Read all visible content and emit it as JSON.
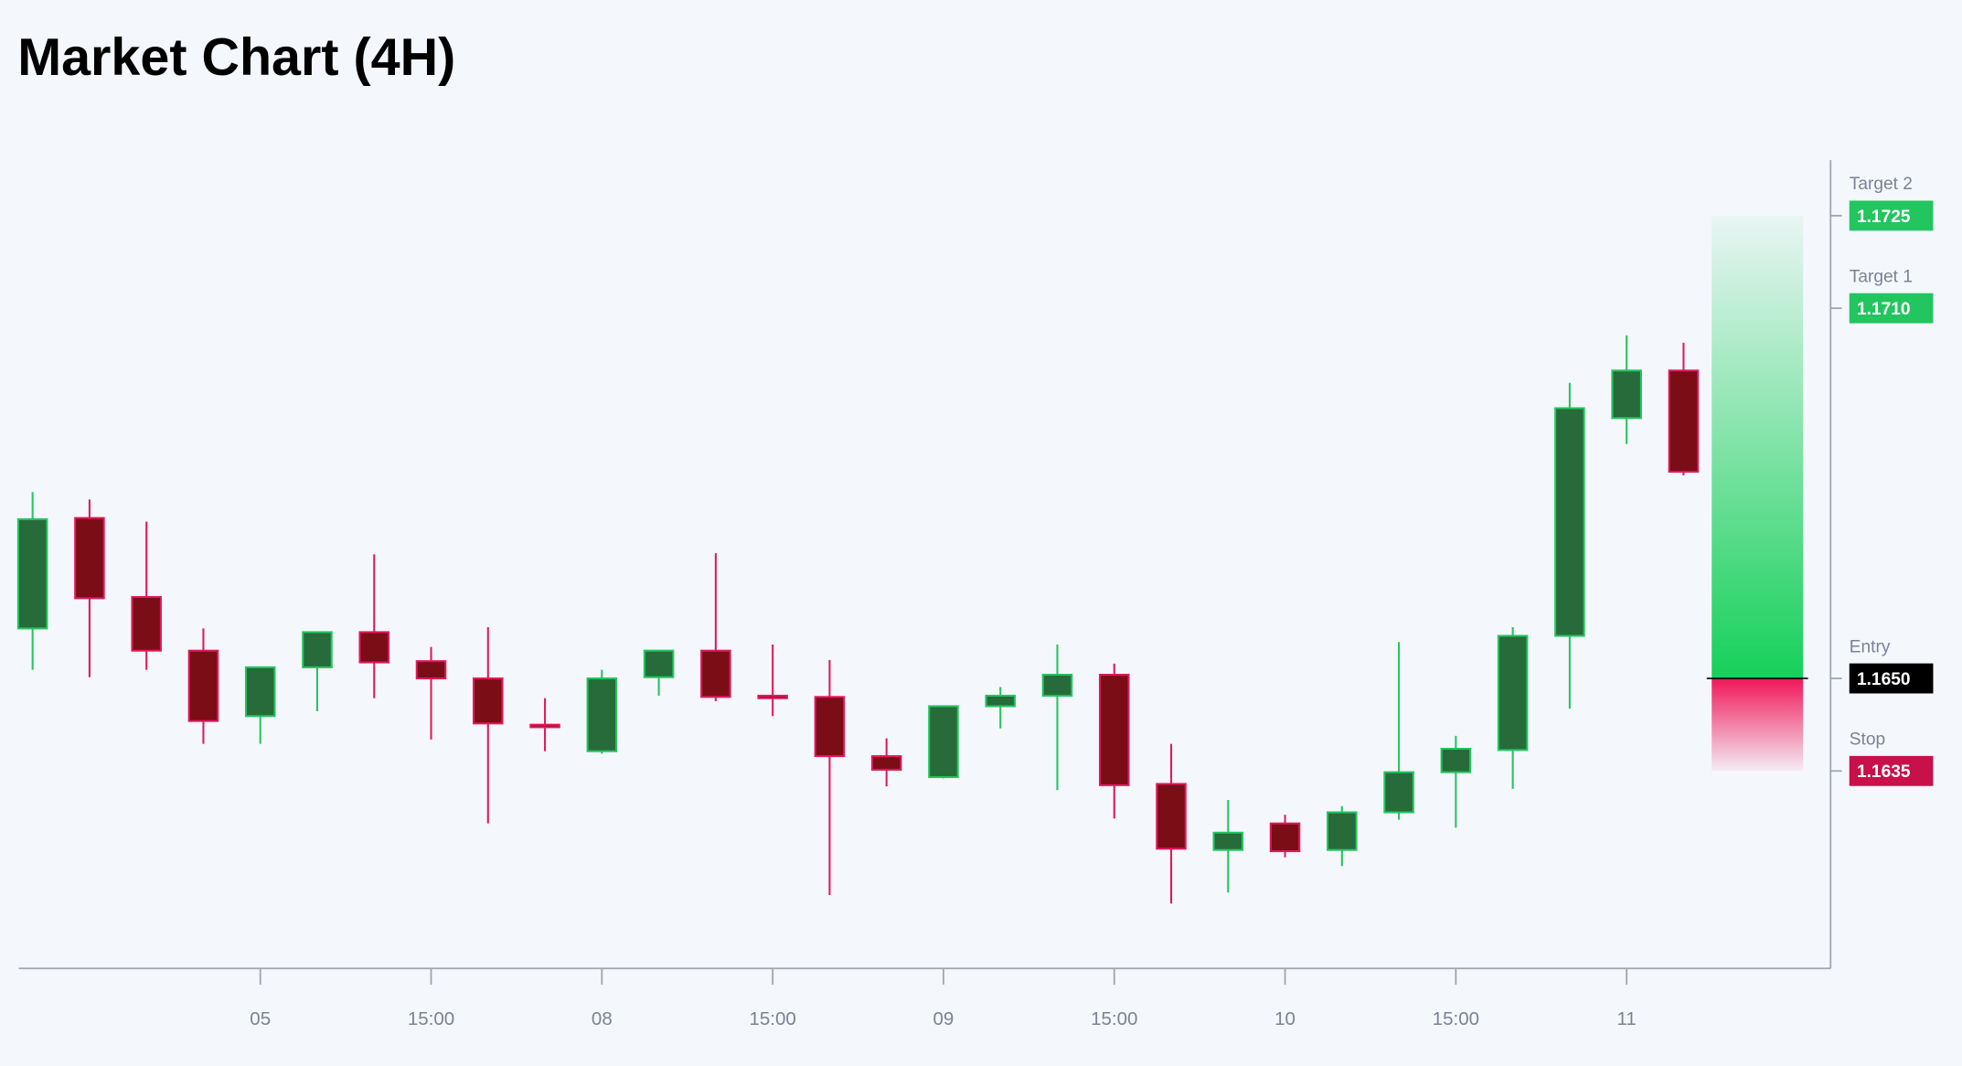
{
  "chart_data": {
    "type": "candlestick",
    "title": "Market Chart (4H)",
    "categories": [
      null,
      null,
      null,
      null,
      "05",
      null,
      null,
      "15:00",
      null,
      null,
      "08",
      null,
      null,
      "15:00",
      null,
      null,
      "09",
      null,
      null,
      "15:00",
      null,
      null,
      "10",
      null,
      null,
      "15:00",
      null,
      null,
      "11",
      null
    ],
    "open": [
      1.16581,
      1.1676,
      1.16632,
      1.16545,
      1.16439,
      1.16518,
      1.16575,
      1.16528,
      1.165,
      1.16425,
      1.16382,
      1.16502,
      1.16545,
      1.16472,
      1.1647,
      1.16374,
      1.1634,
      1.16455,
      1.16472,
      1.16506,
      1.16329,
      1.16222,
      1.16265,
      1.16222,
      1.16283,
      1.16348,
      1.16384,
      1.16569,
      1.16922,
      1.16999
    ],
    "high": [
      1.16802,
      1.1679,
      1.16754,
      1.16581,
      1.16518,
      1.16575,
      1.16701,
      1.16551,
      1.16583,
      1.16468,
      1.16514,
      1.16545,
      1.16703,
      1.16555,
      1.1653,
      1.16403,
      1.16455,
      1.16486,
      1.16555,
      1.16524,
      1.16394,
      1.16303,
      1.16279,
      1.16293,
      1.16559,
      1.16407,
      1.16583,
      1.16979,
      1.17056,
      1.17044
    ],
    "low": [
      1.16514,
      1.16502,
      1.16514,
      1.16394,
      1.16394,
      1.16447,
      1.16468,
      1.16401,
      1.16265,
      1.16382,
      1.16378,
      1.16472,
      1.16463,
      1.16439,
      1.16149,
      1.16325,
      1.16338,
      1.16419,
      1.16319,
      1.16273,
      1.16135,
      1.16153,
      1.1621,
      1.16196,
      1.16271,
      1.16258,
      1.16321,
      1.16451,
      1.1688,
      1.16829
    ],
    "close": [
      1.16758,
      1.1663,
      1.16545,
      1.16431,
      1.16518,
      1.16575,
      1.16526,
      1.165,
      1.16427,
      1.16421,
      1.165,
      1.16545,
      1.1647,
      1.16468,
      1.16374,
      1.16352,
      1.16455,
      1.16472,
      1.16506,
      1.16327,
      1.16224,
      1.1625,
      1.1622,
      1.16283,
      1.16348,
      1.16386,
      1.16569,
      1.16938,
      1.16999,
      1.16835
    ],
    "up_color": "#276b3a",
    "up_border": "#22c55e",
    "down_color": "#7a0d16",
    "down_border": "#e0195a",
    "ylim": [
      1.1603,
      1.1734
    ],
    "levels": [
      {
        "name": "Target 2",
        "value": 1.1725,
        "color": "#22c55e"
      },
      {
        "name": "Target 1",
        "value": 1.171,
        "value_label": "1.1710",
        "color": "#22c55e"
      },
      {
        "name": "Entry",
        "value": 1.165,
        "value_label": "1.1650",
        "color": "#000000"
      },
      {
        "name": "Stop",
        "value": 1.1635,
        "color": "#c8104a"
      }
    ]
  }
}
